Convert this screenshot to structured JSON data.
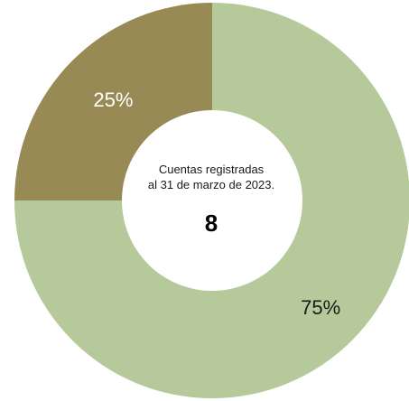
{
  "chart_data": {
    "type": "pie",
    "categories": [
      "",
      ""
    ],
    "values": [
      75,
      25
    ],
    "labels": [
      "75%",
      "25%"
    ],
    "colors": [
      "#b5c99a",
      "#988a55"
    ],
    "center_label_lines": [
      "Cuentas registradas",
      "al 31 de marzo de 2023."
    ],
    "center_value": "8"
  }
}
